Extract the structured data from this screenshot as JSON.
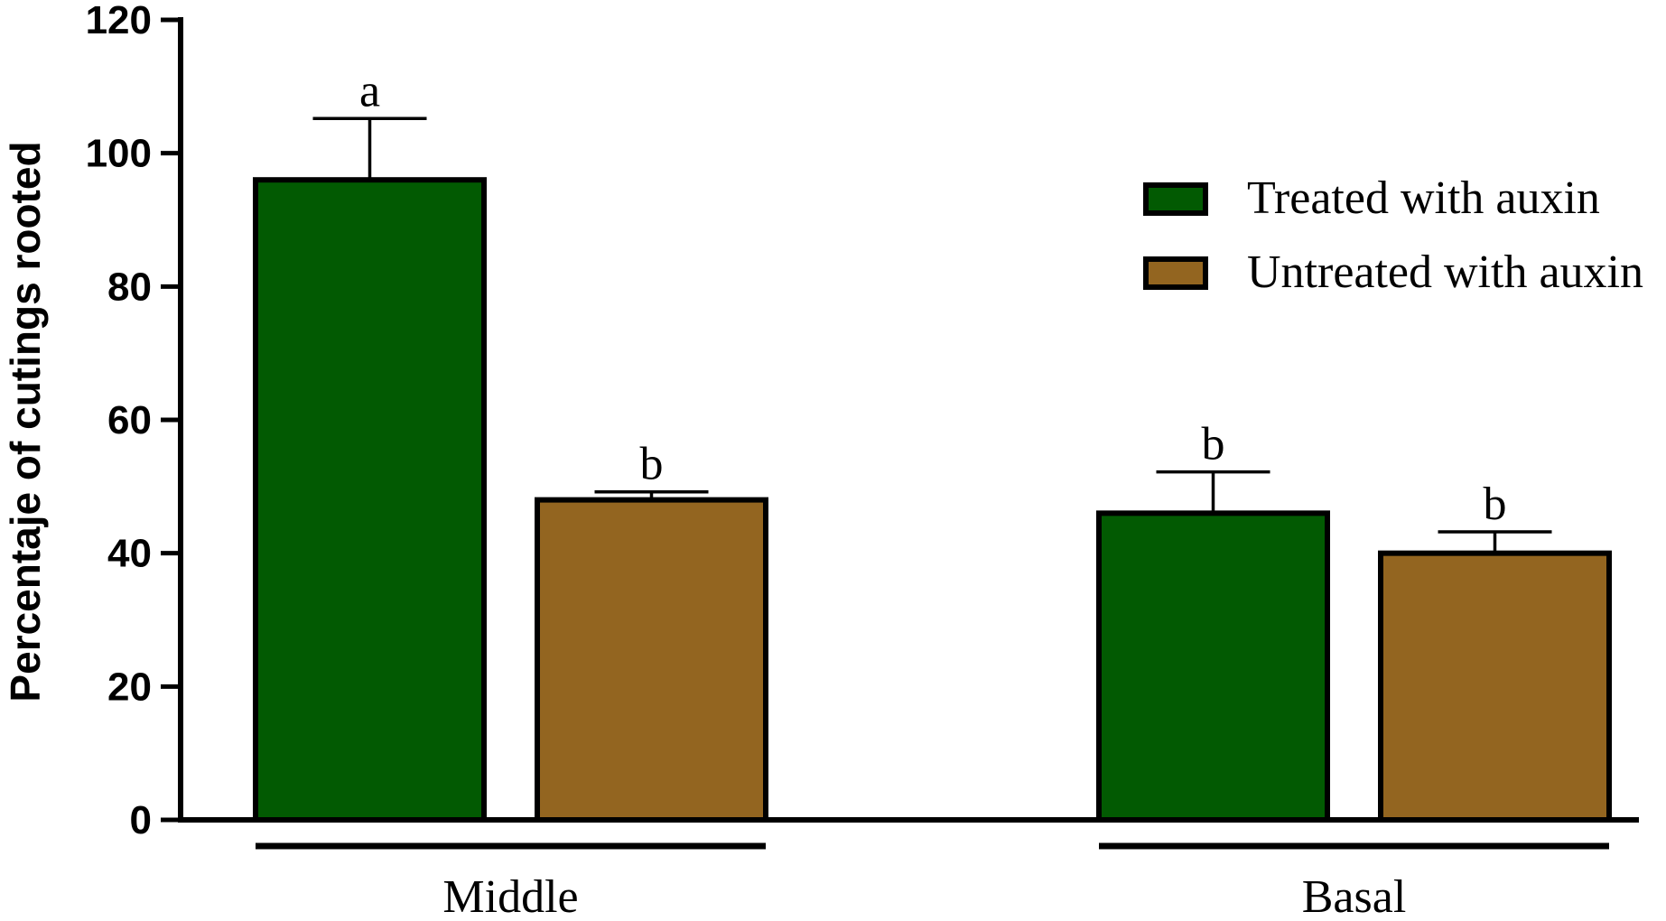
{
  "chart_data": {
    "type": "bar",
    "title": "",
    "xlabel": "",
    "ylabel": "Percentaje of cutings rooted",
    "ylim": [
      0,
      120
    ],
    "yticks": [
      0,
      20,
      40,
      60,
      80,
      100,
      120
    ],
    "categories": [
      "Middle",
      "Basal"
    ],
    "series": [
      {
        "name": "Treated with auxin",
        "color": "#025a02",
        "values": [
          96,
          46
        ],
        "errors": [
          9.2,
          6.2
        ],
        "labels": [
          "a",
          "b"
        ]
      },
      {
        "name": "Untreated with auxin",
        "color": "#936520",
        "values": [
          48,
          40
        ],
        "errors": [
          1.2,
          3.2
        ],
        "labels": [
          "b",
          "b"
        ]
      }
    ],
    "legend_position": "top-right",
    "grid": false
  }
}
